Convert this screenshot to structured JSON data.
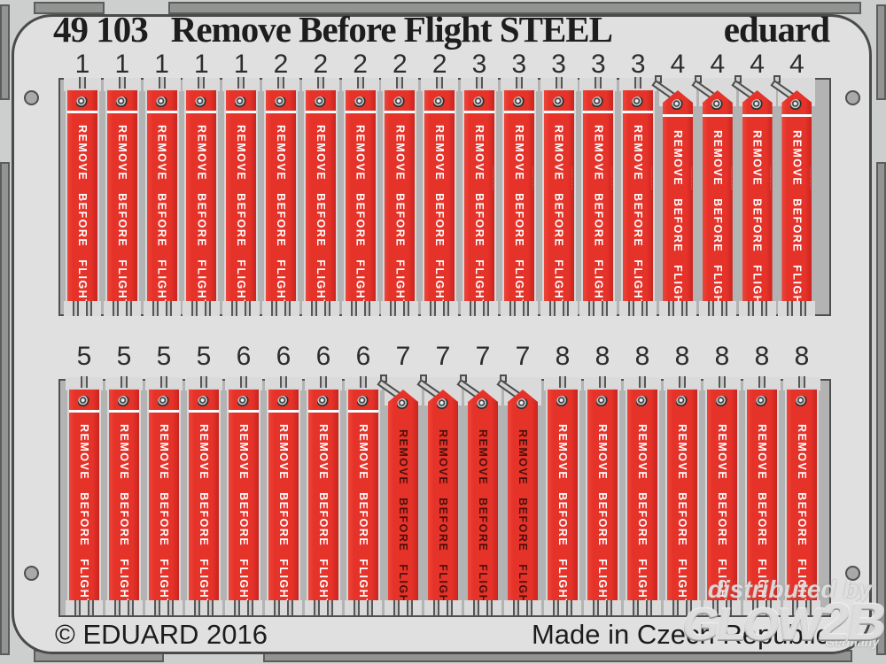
{
  "header": {
    "catalog_number": "49 103",
    "title": "Remove Before Flight STEEL",
    "brand": "eduard"
  },
  "sheet": {
    "flag_text": "REMOVE BEFORE FLIGHT",
    "micro_inscription": "·········· ·········",
    "rows": [
      {
        "id": "top",
        "groups": [
          {
            "number": "1",
            "count": 5,
            "shape": "straight",
            "stripe": true,
            "micro": false,
            "text": "white"
          },
          {
            "number": "2",
            "count": 5,
            "shape": "straight",
            "stripe": true,
            "micro": false,
            "text": "white"
          },
          {
            "number": "3",
            "count": 5,
            "shape": "straight",
            "stripe": true,
            "micro": true,
            "text": "white"
          },
          {
            "number": "4",
            "count": 4,
            "shape": "pointed",
            "stripe": true,
            "micro": true,
            "text": "white"
          }
        ]
      },
      {
        "id": "bottom",
        "groups": [
          {
            "number": "5",
            "count": 4,
            "shape": "straight",
            "stripe": true,
            "micro": false,
            "text": "white"
          },
          {
            "number": "6",
            "count": 4,
            "shape": "straight",
            "stripe": true,
            "micro": false,
            "text": "white"
          },
          {
            "number": "7",
            "count": 4,
            "shape": "pointed",
            "stripe": false,
            "micro": false,
            "text": "dark"
          },
          {
            "number": "8",
            "count": 7,
            "shape": "straight",
            "stripe": false,
            "micro": false,
            "text": "white"
          }
        ]
      }
    ]
  },
  "footer": {
    "copyright": "© EDUARD 2016",
    "origin": "Made in Czech Republic"
  },
  "watermark": {
    "prefix": "distributed by",
    "logo_a": "GLOW",
    "logo_b": "2B",
    "country": "Germany"
  },
  "colors": {
    "flag_red": "#E6332A",
    "text_white": "#FFFFFF",
    "text_dark": "#4A100C",
    "sheet": "#E0E0E0",
    "panel": "#B3B3B3",
    "edge_strip": "#929492"
  }
}
